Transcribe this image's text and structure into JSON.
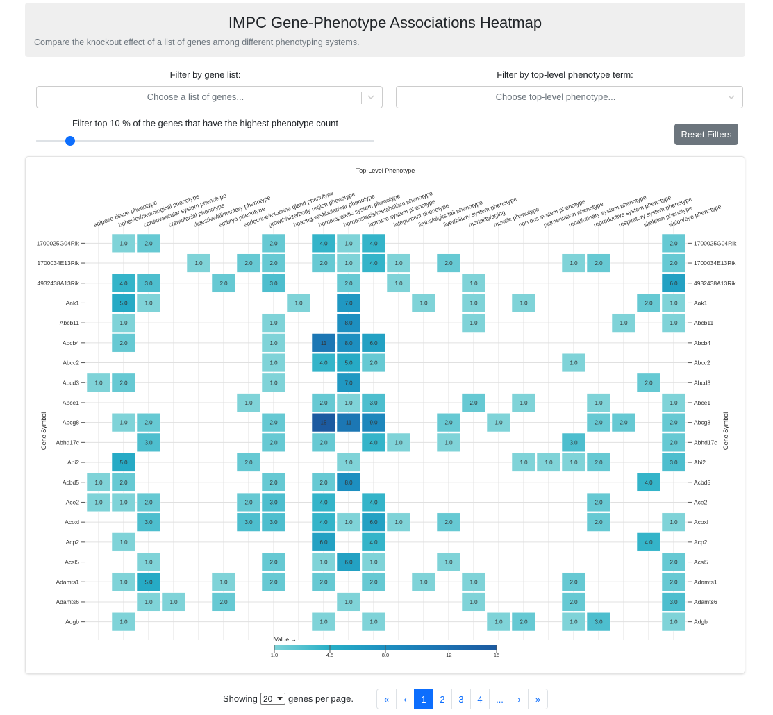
{
  "header": {
    "title": "IMPC Gene-Phenotype Associations Heatmap",
    "subtitle": "Compare the knockout effect of a list of genes among different phenotyping systems."
  },
  "filters": {
    "gene_label": "Filter by gene list:",
    "gene_placeholder": "Choose a list of genes...",
    "phenotype_label": "Filter by top-level phenotype term:",
    "phenotype_placeholder": "Choose top-level phenotype...",
    "slider_label": "Filter top 10 % of the genes that have the highest phenotype count",
    "slider_value": 10,
    "reset_label": "Reset Filters"
  },
  "colors": {
    "scale": [
      "#7fd3d8",
      "#27afc6",
      "#1d8fc0",
      "#1c6fb0",
      "#1c5aa0"
    ],
    "cell_border": "#ffffff",
    "grid": "#e0e0e0",
    "active_page": "#0d6efd"
  },
  "chart_data": {
    "type": "heatmap",
    "title": "Top-Level Phenotype",
    "ylabel": "Gene Symbol",
    "legend_title": "Value →",
    "legend_ticks": [
      "1.0",
      "4.5",
      "8.0",
      "12",
      "15"
    ],
    "x": [
      "adipose tissue phenotype",
      "behavior/neurological phenotype",
      "cardiovascular system phenotype",
      "craniofacial phenotype",
      "digestive/alimentary phenotype",
      "embryo phenotype",
      "endocrine/exocrine gland phenotype",
      "growth/size/body region phenotype",
      "hearing/vestibular/ear phenotype",
      "hematopoietic system phenotype",
      "homeostasis/metabolism phenotype",
      "immune system phenotype",
      "integument phenotype",
      "limbs/digits/tail phenotype",
      "liver/biliary system phenotype",
      "mortality/aging",
      "muscle phenotype",
      "nervous system phenotype",
      "pigmentation phenotype",
      "renal/urinary system phenotype",
      "reproductive system phenotype",
      "respiratory system phenotype",
      "skeleton phenotype",
      "vision/eye phenotype"
    ],
    "y": [
      "1700025G04Rik",
      "1700034E13Rik",
      "4932438A13Rik",
      "Aak1",
      "Abcb11",
      "Abcb4",
      "Abcc2",
      "Abcd3",
      "Abce1",
      "Abcg8",
      "Abhd17c",
      "Abi2",
      "Acbd5",
      "Ace2",
      "Acoxl",
      "Acp2",
      "Acsl5",
      "Adamts1",
      "Adamts6",
      "Adgb"
    ],
    "values": [
      [
        null,
        1.0,
        2.0,
        null,
        null,
        null,
        null,
        2.0,
        null,
        4.0,
        1.0,
        4.0,
        null,
        null,
        null,
        null,
        null,
        null,
        null,
        null,
        null,
        null,
        null,
        2.0
      ],
      [
        null,
        null,
        null,
        null,
        1.0,
        null,
        2.0,
        2.0,
        null,
        2.0,
        1.0,
        4.0,
        1.0,
        null,
        2.0,
        null,
        null,
        null,
        null,
        1.0,
        2.0,
        null,
        null,
        2.0
      ],
      [
        null,
        4.0,
        3.0,
        null,
        null,
        2.0,
        null,
        3.0,
        null,
        null,
        2.0,
        null,
        1.0,
        null,
        null,
        1.0,
        null,
        null,
        null,
        null,
        null,
        null,
        null,
        6.0
      ],
      [
        null,
        5.0,
        1.0,
        null,
        null,
        null,
        null,
        null,
        1.0,
        null,
        7.0,
        null,
        null,
        1.0,
        null,
        1.0,
        null,
        1.0,
        null,
        null,
        null,
        null,
        2.0,
        1.0
      ],
      [
        null,
        1.0,
        null,
        null,
        null,
        null,
        null,
        1.0,
        null,
        null,
        8.0,
        null,
        null,
        null,
        null,
        1.0,
        null,
        null,
        null,
        null,
        null,
        1.0,
        null,
        1.0
      ],
      [
        null,
        2.0,
        null,
        null,
        null,
        null,
        null,
        1.0,
        null,
        11,
        8.0,
        6.0,
        null,
        null,
        null,
        null,
        null,
        null,
        null,
        null,
        null,
        null,
        null,
        null
      ],
      [
        null,
        null,
        null,
        null,
        null,
        null,
        null,
        1.0,
        null,
        4.0,
        5.0,
        2.0,
        null,
        null,
        null,
        null,
        null,
        null,
        null,
        1.0,
        null,
        null,
        null,
        null
      ],
      [
        1.0,
        2.0,
        null,
        null,
        null,
        null,
        null,
        1.0,
        null,
        null,
        7.0,
        null,
        null,
        null,
        null,
        null,
        null,
        null,
        null,
        null,
        null,
        null,
        2.0,
        null
      ],
      [
        null,
        null,
        null,
        null,
        null,
        null,
        1.0,
        null,
        null,
        2.0,
        1.0,
        3.0,
        null,
        null,
        null,
        2.0,
        null,
        1.0,
        null,
        null,
        1.0,
        null,
        null,
        1.0
      ],
      [
        null,
        1.0,
        2.0,
        null,
        null,
        null,
        null,
        2.0,
        null,
        15,
        11,
        9.0,
        null,
        null,
        2.0,
        null,
        1.0,
        null,
        null,
        null,
        2.0,
        2.0,
        null,
        2.0
      ],
      [
        null,
        null,
        3.0,
        null,
        null,
        null,
        null,
        2.0,
        null,
        2.0,
        null,
        4.0,
        1.0,
        null,
        1.0,
        null,
        null,
        null,
        null,
        3.0,
        null,
        null,
        null,
        2.0
      ],
      [
        null,
        5.0,
        null,
        null,
        null,
        null,
        2.0,
        null,
        null,
        null,
        1.0,
        null,
        null,
        null,
        null,
        null,
        null,
        1.0,
        1.0,
        1.0,
        2.0,
        null,
        null,
        3.0
      ],
      [
        1.0,
        2.0,
        null,
        null,
        null,
        null,
        null,
        2.0,
        null,
        2.0,
        8.0,
        null,
        null,
        null,
        null,
        null,
        null,
        null,
        null,
        null,
        null,
        null,
        4.0,
        null
      ],
      [
        1.0,
        1.0,
        2.0,
        null,
        null,
        null,
        2.0,
        3.0,
        null,
        4.0,
        null,
        4.0,
        null,
        null,
        null,
        null,
        null,
        null,
        null,
        null,
        2.0,
        null,
        null,
        null
      ],
      [
        null,
        null,
        3.0,
        null,
        null,
        null,
        3.0,
        3.0,
        null,
        4.0,
        1.0,
        6.0,
        1.0,
        null,
        2.0,
        null,
        null,
        null,
        null,
        null,
        2.0,
        null,
        null,
        1.0
      ],
      [
        null,
        1.0,
        null,
        null,
        null,
        null,
        null,
        null,
        null,
        6.0,
        null,
        4.0,
        null,
        null,
        null,
        null,
        null,
        null,
        null,
        null,
        null,
        null,
        4.0,
        null
      ],
      [
        null,
        null,
        1.0,
        null,
        null,
        null,
        null,
        2.0,
        null,
        1.0,
        6.0,
        1.0,
        null,
        null,
        1.0,
        null,
        null,
        null,
        null,
        null,
        null,
        null,
        null,
        2.0
      ],
      [
        null,
        1.0,
        5.0,
        null,
        null,
        1.0,
        null,
        2.0,
        null,
        2.0,
        null,
        2.0,
        null,
        1.0,
        null,
        1.0,
        null,
        null,
        null,
        2.0,
        null,
        null,
        null,
        2.0
      ],
      [
        null,
        null,
        1.0,
        1.0,
        null,
        2.0,
        null,
        null,
        null,
        null,
        1.0,
        null,
        null,
        null,
        null,
        1.0,
        null,
        null,
        null,
        2.0,
        null,
        null,
        null,
        3.0
      ],
      [
        null,
        1.0,
        null,
        null,
        null,
        null,
        null,
        null,
        null,
        1.0,
        null,
        1.0,
        null,
        null,
        null,
        null,
        1.0,
        2.0,
        null,
        1.0,
        3.0,
        null,
        null,
        1.0
      ]
    ]
  },
  "pagination": {
    "showing": "Showing",
    "per_page_value": "20",
    "per_page_suffix": "genes per page.",
    "first": "«",
    "prev": "‹",
    "pages": [
      "1",
      "2",
      "3",
      "4"
    ],
    "ellipsis": "...",
    "next": "›",
    "last": "»"
  }
}
